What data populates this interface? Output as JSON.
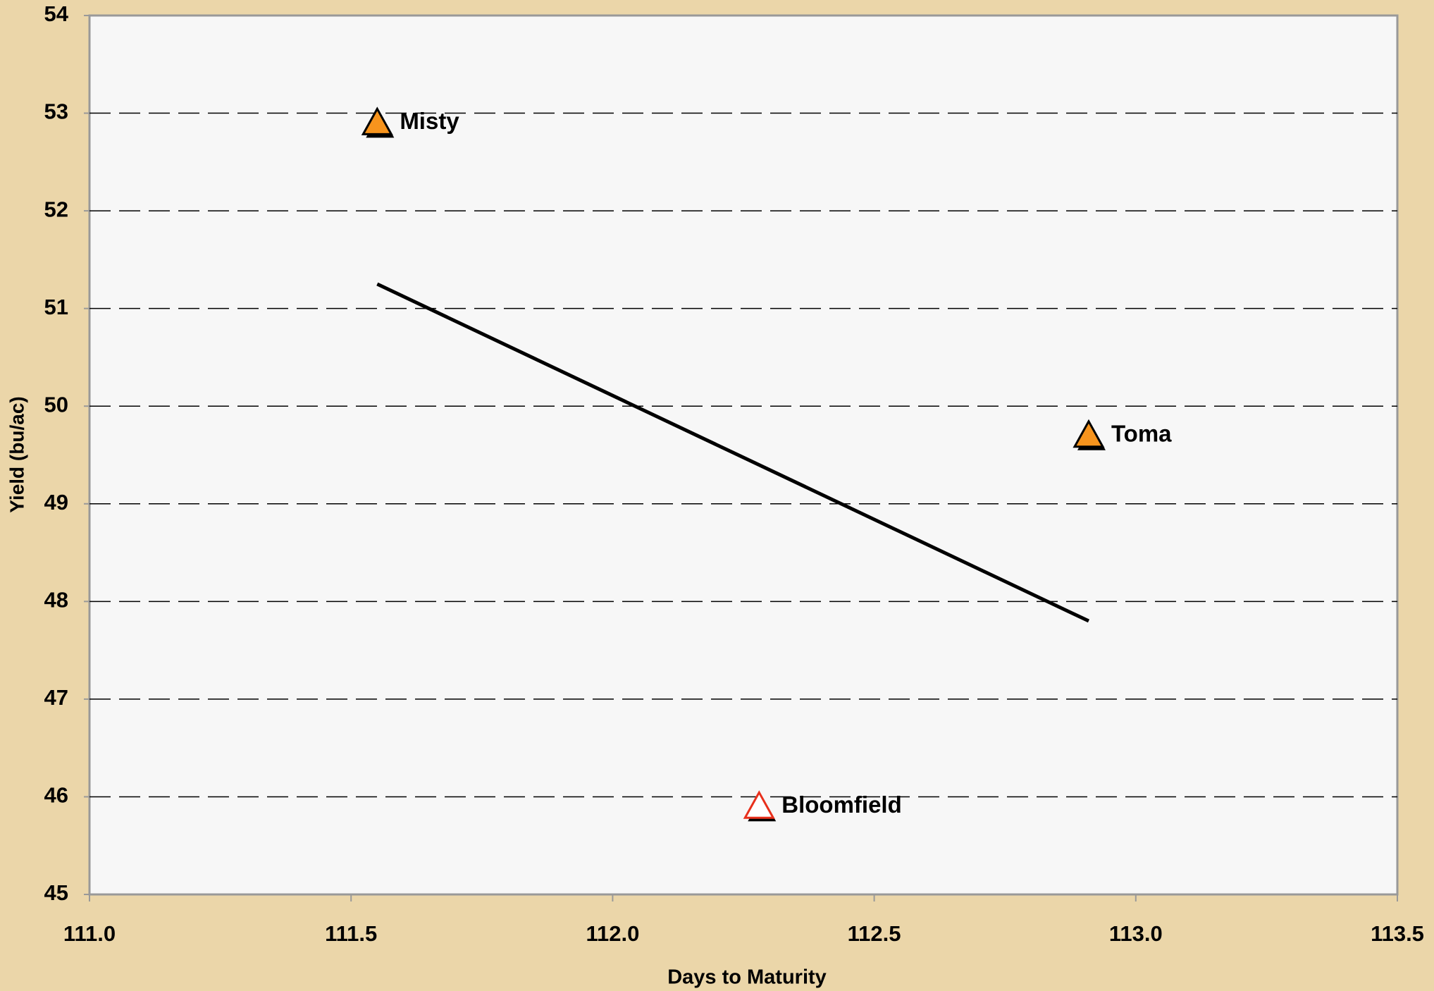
{
  "chart_data": {
    "type": "scatter",
    "x_label": "Days to Maturity",
    "y_label": "Yield (bu/ac)",
    "series": [
      {
        "name": "Misty",
        "color": "#f7941d",
        "edgecolor": "#000000",
        "x": [
          111.55
        ],
        "values": [
          52.9
        ]
      },
      {
        "name": "Toma",
        "color": "#f7941d",
        "edgecolor": "#000000",
        "x": [
          112.91
        ],
        "values": [
          49.7
        ]
      },
      {
        "name": "Bloomfield",
        "color": "#ffffff",
        "edgecolor": "#e8301c",
        "x": [
          112.28
        ],
        "values": [
          45.9
        ]
      }
    ],
    "trendline": {
      "color": "#000000",
      "x": [
        111.55,
        112.91
      ],
      "values": [
        51.25,
        47.8
      ]
    },
    "xlim": [
      111,
      113.5
    ],
    "xticks": [
      {
        "value": 111,
        "label": "111.0"
      },
      111.5,
      {
        "value": 112,
        "label": "112.0"
      },
      112.5,
      {
        "value": 113,
        "label": "113.0"
      },
      113.5
    ],
    "ylim": [
      45,
      54
    ],
    "yticks": [
      45,
      46,
      47,
      48,
      49,
      50,
      51,
      52,
      53,
      54
    ],
    "grid": true
  }
}
